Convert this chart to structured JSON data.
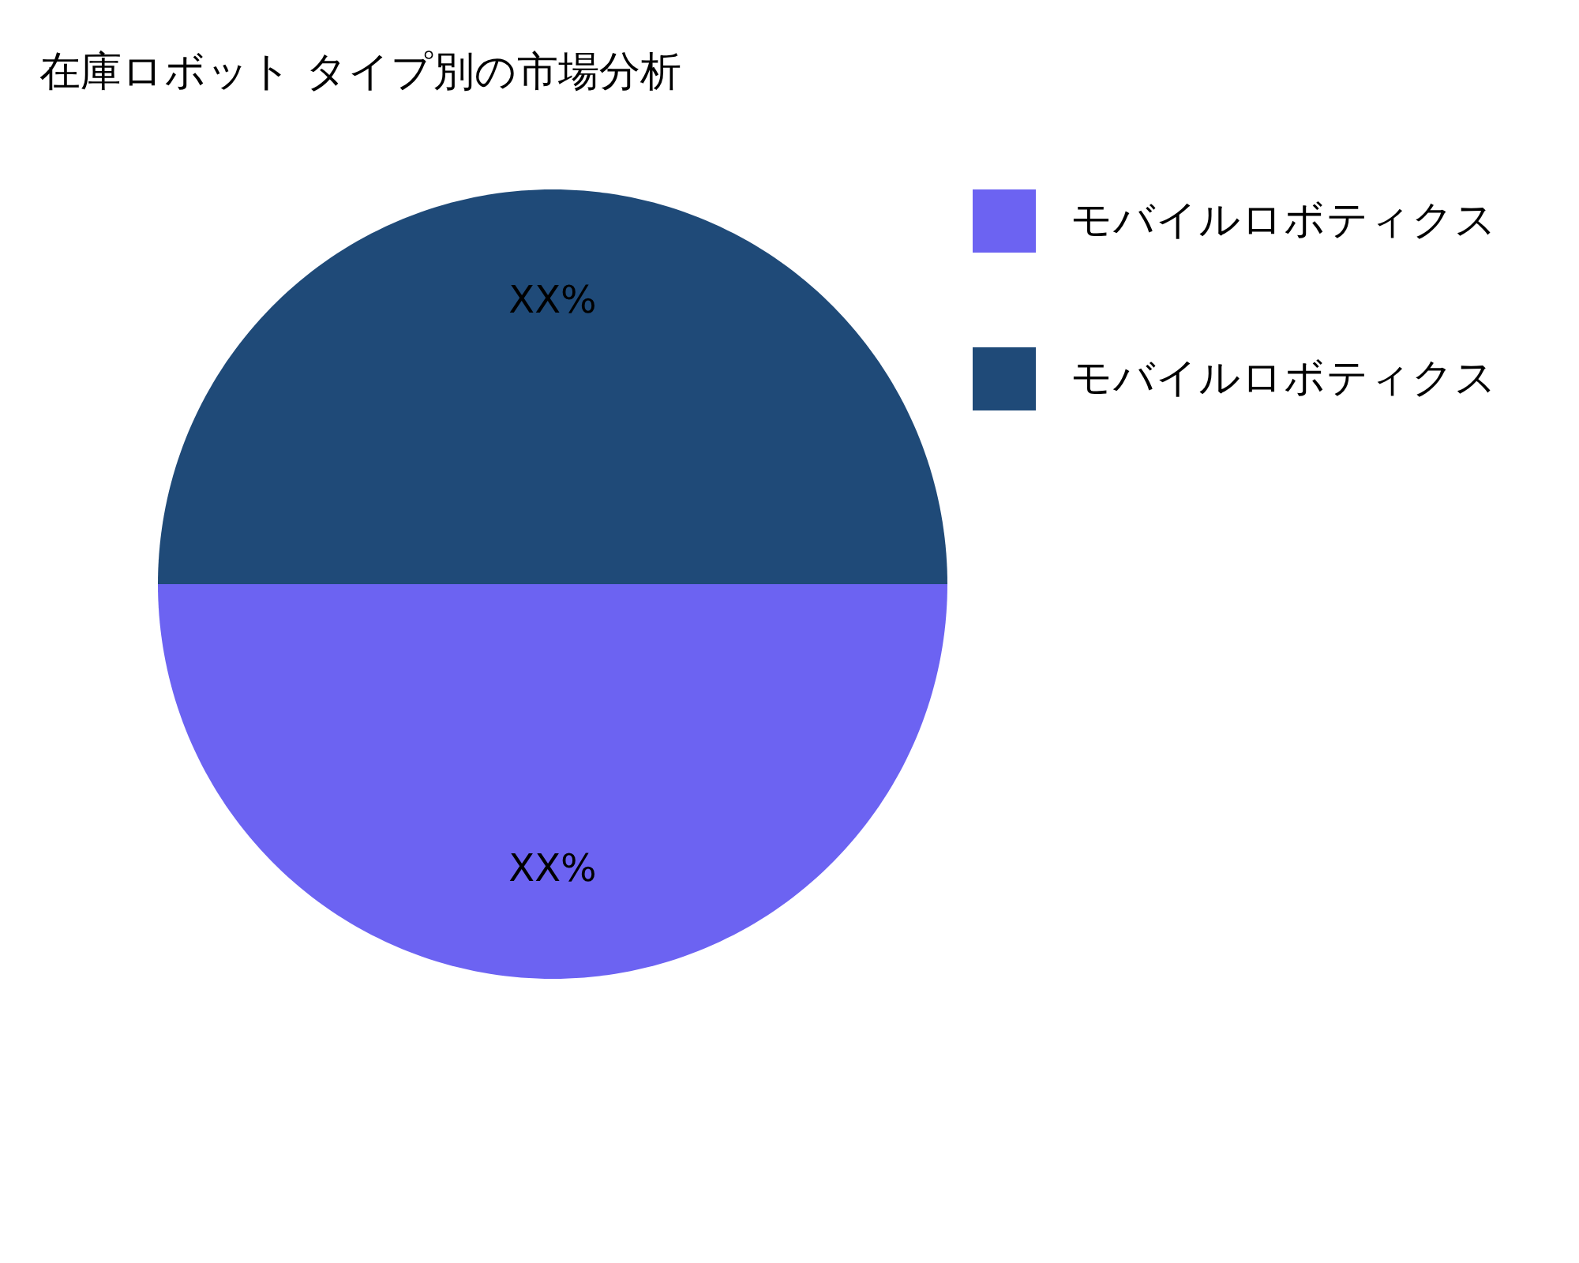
{
  "chart_data": {
    "type": "pie",
    "title": "在庫ロボット タイプ別の市場分析",
    "categories": [
      "モバイルロボティクス",
      "モバイルロボティクス"
    ],
    "values": [
      50,
      50
    ],
    "colors": [
      "#6c63f2",
      "#1f4a78"
    ],
    "value_labels": [
      "XX%",
      "XX%"
    ],
    "legend": "top right"
  }
}
